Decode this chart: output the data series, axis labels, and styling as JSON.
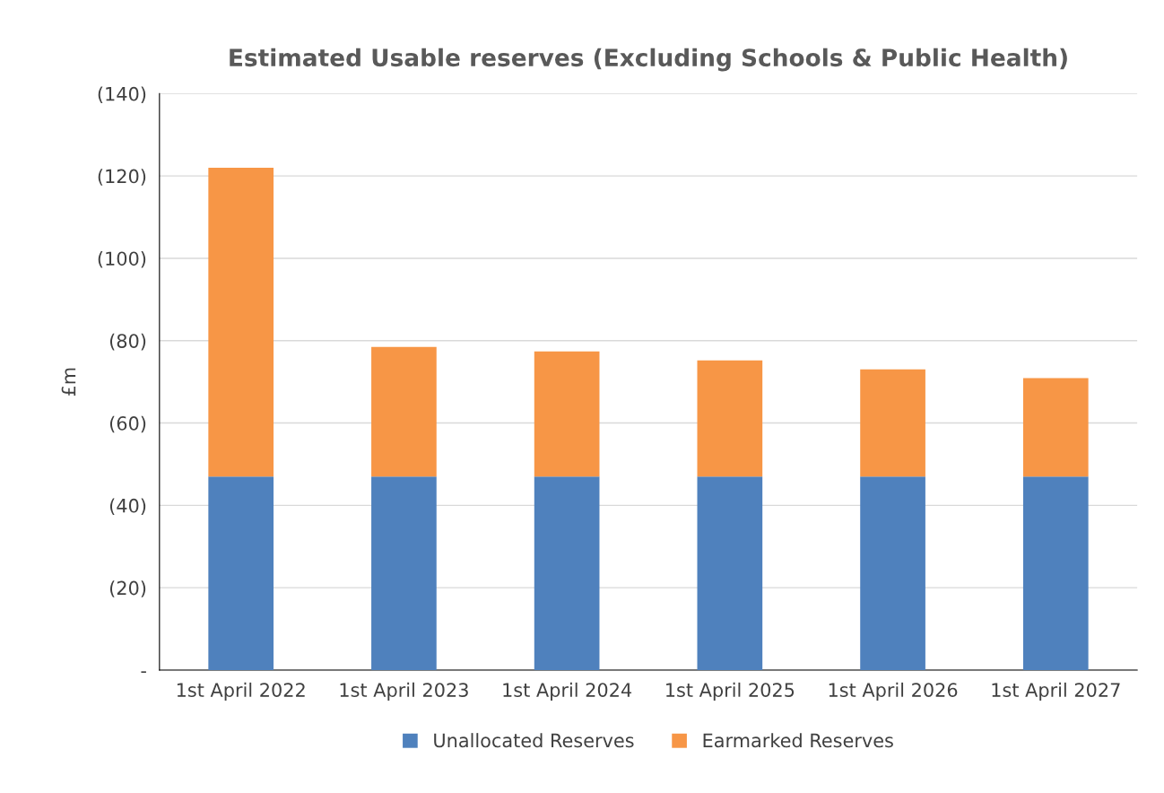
{
  "chart_data": {
    "type": "bar",
    "title": "Estimated Usable reserves (Excluding Schools & Public Health)",
    "ylabel": "£m",
    "categories": [
      "1st April 2022",
      "1st April 2023",
      "1st April 2024",
      "1st April 2025",
      "1st April 2026",
      "1st April 2027"
    ],
    "series": [
      {
        "name": "Unallocated Reserves",
        "color": "#4f81bd",
        "values": [
          47,
          47,
          47,
          47,
          47,
          47
        ]
      },
      {
        "name": "Earmarked Reserves",
        "color": "#f79646",
        "values": [
          75,
          31.5,
          30.4,
          28.2,
          26,
          23.9
        ]
      }
    ],
    "stacked": true,
    "ylim": [
      0,
      140
    ],
    "yticks": [
      {
        "value": 0,
        "label": "-"
      },
      {
        "value": 20,
        "label": "(20)"
      },
      {
        "value": 40,
        "label": "(40)"
      },
      {
        "value": 60,
        "label": "(60)"
      },
      {
        "value": 80,
        "label": "(80)"
      },
      {
        "value": 100,
        "label": "(100)"
      },
      {
        "value": 120,
        "label": "(120)"
      },
      {
        "value": 140,
        "label": "(140)"
      }
    ],
    "grid": "y",
    "legend": "bottom"
  }
}
